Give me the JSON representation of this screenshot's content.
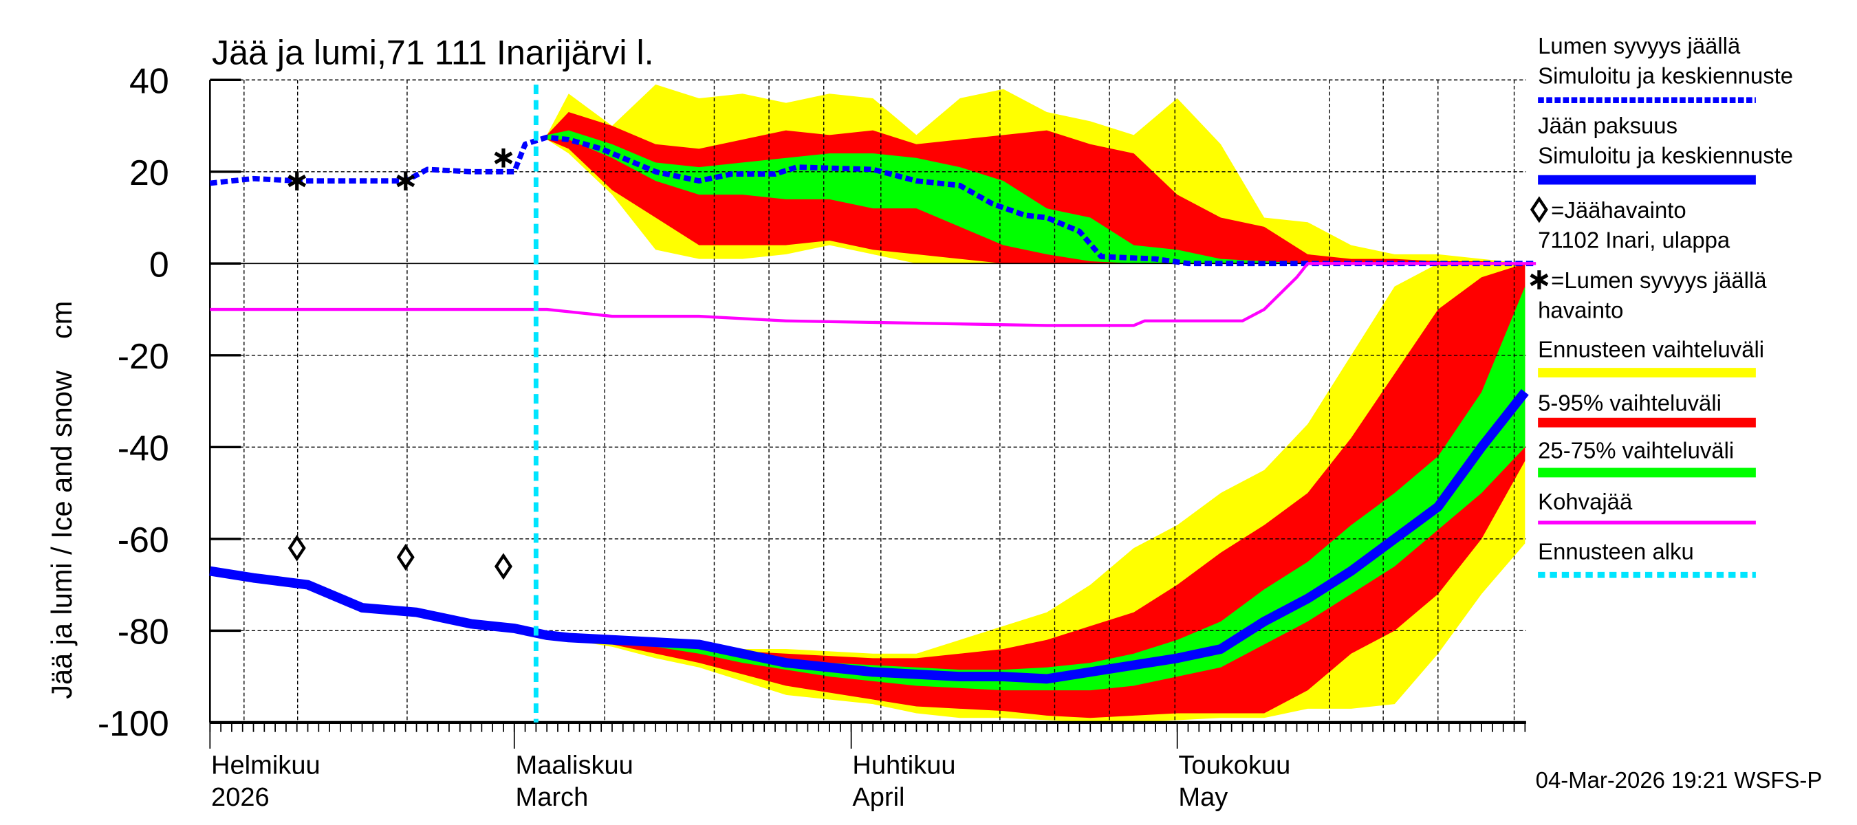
{
  "chart_data": {
    "type": "area",
    "title": "Jää ja lumi,71 111 Inarijärvi l.",
    "ylabel": "Jää ja lumi / Ice and snow    cm",
    "ylim": [
      -100,
      40
    ],
    "yticks": [
      40,
      20,
      0,
      -20,
      -40,
      -60,
      -80,
      -100
    ],
    "xlim": [
      "2026-02-01",
      "2026-06-03"
    ],
    "grid": true,
    "month_labels": [
      {
        "date": "2026-02-01",
        "fi": "Helmikuu",
        "en": "2026"
      },
      {
        "date": "2026-03-01",
        "fi": "Maaliskuu",
        "en": "March"
      },
      {
        "date": "2026-04-01",
        "fi": "Huhtikuu",
        "en": "April"
      },
      {
        "date": "2026-05-01",
        "fi": "Toukokuu",
        "en": "May"
      }
    ],
    "forecast_start": "2026-03-03",
    "timestamp": "04-Mar-2026 19:21 WSFS-P",
    "colors": {
      "snow": "#0000ff",
      "ice": "#0000ff",
      "range_full": "#ffff00",
      "range_5_95": "#ff0000",
      "range_25_75": "#00ff00",
      "slush": "#ff00ff",
      "forecast_start": "#00e5ff"
    },
    "band_dates": [
      "2026-03-04",
      "2026-03-06",
      "2026-03-10",
      "2026-03-14",
      "2026-03-18",
      "2026-03-22",
      "2026-03-26",
      "2026-03-30",
      "2026-04-03",
      "2026-04-07",
      "2026-04-11",
      "2026-04-15",
      "2026-04-19",
      "2026-04-23",
      "2026-04-27",
      "2026-05-01",
      "2026-05-05",
      "2026-05-09",
      "2026-05-13",
      "2026-05-17",
      "2026-05-21",
      "2026-05-25",
      "2026-05-29",
      "2026-06-02"
    ],
    "snow_bands": {
      "full_upper": [
        28,
        37,
        30,
        39,
        36,
        37,
        35,
        37,
        36,
        28,
        36,
        38,
        33,
        31,
        28,
        36,
        26,
        10,
        9,
        4,
        2,
        2,
        1,
        0
      ],
      "p95": [
        28,
        33,
        30,
        26,
        25,
        27,
        29,
        28,
        29,
        26,
        27,
        28,
        29,
        26,
        24,
        15,
        10,
        8,
        2,
        1,
        1,
        0.5,
        0.5,
        0
      ],
      "p75": [
        28,
        29,
        26,
        22,
        21,
        22,
        23,
        24,
        24,
        23,
        21,
        18,
        12,
        10,
        4,
        3,
        1,
        0.5,
        0,
        0,
        0,
        0,
        0,
        0
      ],
      "p25": [
        27,
        27,
        23,
        18,
        15,
        15,
        14,
        14,
        12,
        12,
        8,
        4,
        2,
        0.5,
        0,
        0,
        0,
        0,
        0,
        0,
        0,
        0,
        0,
        0
      ],
      "p5": [
        27,
        25,
        16,
        10,
        4,
        4,
        4,
        5,
        3,
        2,
        1,
        0,
        0,
        0,
        0,
        0,
        0,
        0,
        0,
        0,
        0,
        0,
        0,
        0
      ],
      "full_lower": [
        27,
        24,
        15,
        3,
        1,
        1,
        2,
        4,
        2,
        0,
        0,
        0,
        0,
        0,
        0,
        0,
        0,
        0,
        0,
        0,
        0,
        0,
        0,
        0
      ]
    },
    "ice_bands": {
      "full_upper": [
        -81,
        -81.5,
        -82,
        -82.5,
        -83,
        -84,
        -84,
        -84.5,
        -85,
        -85,
        -82,
        -79,
        -76,
        -70,
        -62,
        -57,
        -50,
        -45,
        -35,
        -20,
        -5,
        0,
        0,
        0
      ],
      "p95": [
        -81,
        -81.5,
        -82,
        -82.5,
        -83,
        -84.5,
        -85,
        -85.5,
        -86,
        -86,
        -85,
        -84,
        -82,
        -79,
        -76,
        -70,
        -63,
        -57,
        -50,
        -38,
        -24,
        -10,
        -3,
        0
      ],
      "p75": [
        -81,
        -81.5,
        -82,
        -83,
        -83.5,
        -85.5,
        -86.5,
        -87,
        -87.5,
        -88,
        -88.5,
        -88.5,
        -88,
        -87,
        -85,
        -82,
        -78,
        -71,
        -65,
        -57,
        -50,
        -42,
        -28,
        -5
      ],
      "p25": [
        -81,
        -82,
        -82.5,
        -83.5,
        -85,
        -87,
        -88.5,
        -90,
        -91,
        -92,
        -92.5,
        -93,
        -93,
        -93,
        -92,
        -90,
        -88,
        -83,
        -78,
        -72,
        -66,
        -58,
        -50,
        -40
      ],
      "p5": [
        -81,
        -82,
        -83,
        -85,
        -87,
        -89.5,
        -92,
        -93.5,
        -95,
        -96.5,
        -97,
        -97.5,
        -98.5,
        -99,
        -98.5,
        -98,
        -98,
        -98,
        -93,
        -85,
        -80,
        -72,
        -60,
        -43
      ],
      "full_lower": [
        -81,
        -82,
        -83.5,
        -86,
        -88,
        -91,
        -94,
        -95,
        -96,
        -98,
        -99,
        -99,
        -99.5,
        -100,
        -100,
        -99.5,
        -99,
        -99,
        -97,
        -97,
        -96,
        -85,
        -72,
        -61
      ]
    },
    "series": [
      {
        "name": "Lumen syvyys jäällä – Simuloitu ja keskiennuste",
        "key": "snow",
        "style": "dashed",
        "x": [
          "2026-02-01",
          "2026-02-05",
          "2026-02-09",
          "2026-02-14",
          "2026-02-19",
          "2026-02-21",
          "2026-02-25",
          "2026-03-01",
          "2026-03-02",
          "2026-03-04",
          "2026-03-06",
          "2026-03-09",
          "2026-03-12",
          "2026-03-14",
          "2026-03-18",
          "2026-03-21",
          "2026-03-25",
          "2026-03-27",
          "2026-04-03",
          "2026-04-07",
          "2026-04-11",
          "2026-04-14",
          "2026-04-17",
          "2026-04-19",
          "2026-04-22",
          "2026-04-24",
          "2026-04-29",
          "2026-05-02",
          "2026-06-03"
        ],
        "y": [
          17.5,
          18.5,
          18,
          18,
          18,
          20.5,
          20,
          20,
          26,
          27.5,
          27,
          25,
          22,
          20,
          18,
          19.5,
          19.5,
          21,
          20.5,
          18,
          17,
          13,
          10.5,
          10,
          7,
          1.5,
          1,
          0,
          0
        ]
      },
      {
        "name": "Jään paksuus – Simuloitu ja keskiennuste",
        "key": "ice",
        "style": "solid",
        "x": [
          "2026-02-01",
          "2026-02-05",
          "2026-02-10",
          "2026-02-15",
          "2026-02-20",
          "2026-02-25",
          "2026-03-01",
          "2026-03-04",
          "2026-03-06",
          "2026-03-10",
          "2026-03-14",
          "2026-03-18",
          "2026-03-22",
          "2026-03-26",
          "2026-03-30",
          "2026-04-03",
          "2026-04-07",
          "2026-04-11",
          "2026-04-15",
          "2026-04-19",
          "2026-04-23",
          "2026-04-27",
          "2026-05-01",
          "2026-05-05",
          "2026-05-09",
          "2026-05-13",
          "2026-05-17",
          "2026-05-21",
          "2026-05-25",
          "2026-05-29",
          "2026-06-02"
        ],
        "y": [
          -67,
          -68.5,
          -70,
          -75,
          -76,
          -78.5,
          -79.5,
          -81,
          -81.5,
          -82,
          -82.5,
          -83,
          -85,
          -87,
          -88,
          -89,
          -89.5,
          -90,
          -90,
          -90.5,
          -89,
          -87.5,
          -86,
          -84,
          -78,
          -73,
          -67,
          -60,
          -53,
          -40,
          -28
        ]
      },
      {
        "name": "Kohvajää",
        "key": "slush",
        "style": "solid",
        "x": [
          "2026-02-01",
          "2026-03-04",
          "2026-03-06",
          "2026-03-10",
          "2026-03-18",
          "2026-03-26",
          "2026-04-07",
          "2026-04-19",
          "2026-04-27",
          "2026-04-28",
          "2026-05-07",
          "2026-05-09",
          "2026-05-12",
          "2026-05-13",
          "2026-06-03"
        ],
        "y": [
          -10,
          -10,
          -10.5,
          -11.5,
          -11.5,
          -12.5,
          -13,
          -13.5,
          -13.5,
          -12.5,
          -12.5,
          -10,
          -3,
          0,
          0
        ]
      }
    ],
    "ice_observations": {
      "x": [
        "2026-02-09",
        "2026-02-19",
        "2026-02-28"
      ],
      "y": [
        -62,
        -64,
        -66
      ]
    },
    "snow_observations": {
      "x": [
        "2026-02-09",
        "2026-02-19",
        "2026-02-28"
      ],
      "y": [
        18,
        18,
        23
      ]
    },
    "legend": [
      {
        "lines": [
          "Lumen syvyys jäällä",
          "Simuloitu ja keskiennuste"
        ],
        "swatch": "snow-dashed"
      },
      {
        "lines": [
          "Jään paksuus",
          "Simuloitu ja keskiennuste"
        ],
        "swatch": "ice-solid"
      },
      {
        "lines": [
          "=Jäähavainto",
          "71102 Inari, ulappa"
        ],
        "swatch": "diamond"
      },
      {
        "lines": [
          "=Lumen syvyys jäällä",
          "havainto"
        ],
        "swatch": "star"
      },
      {
        "lines": [
          "Ennusteen vaihteluväli"
        ],
        "swatch": "yellow"
      },
      {
        "lines": [
          "5-95% vaihteluväli"
        ],
        "swatch": "red"
      },
      {
        "lines": [
          "25-75% vaihteluväli"
        ],
        "swatch": "green"
      },
      {
        "lines": [
          "Kohvajää"
        ],
        "swatch": "magenta"
      },
      {
        "lines": [
          "Ennusteen alku"
        ],
        "swatch": "cyan-dashed"
      }
    ]
  }
}
